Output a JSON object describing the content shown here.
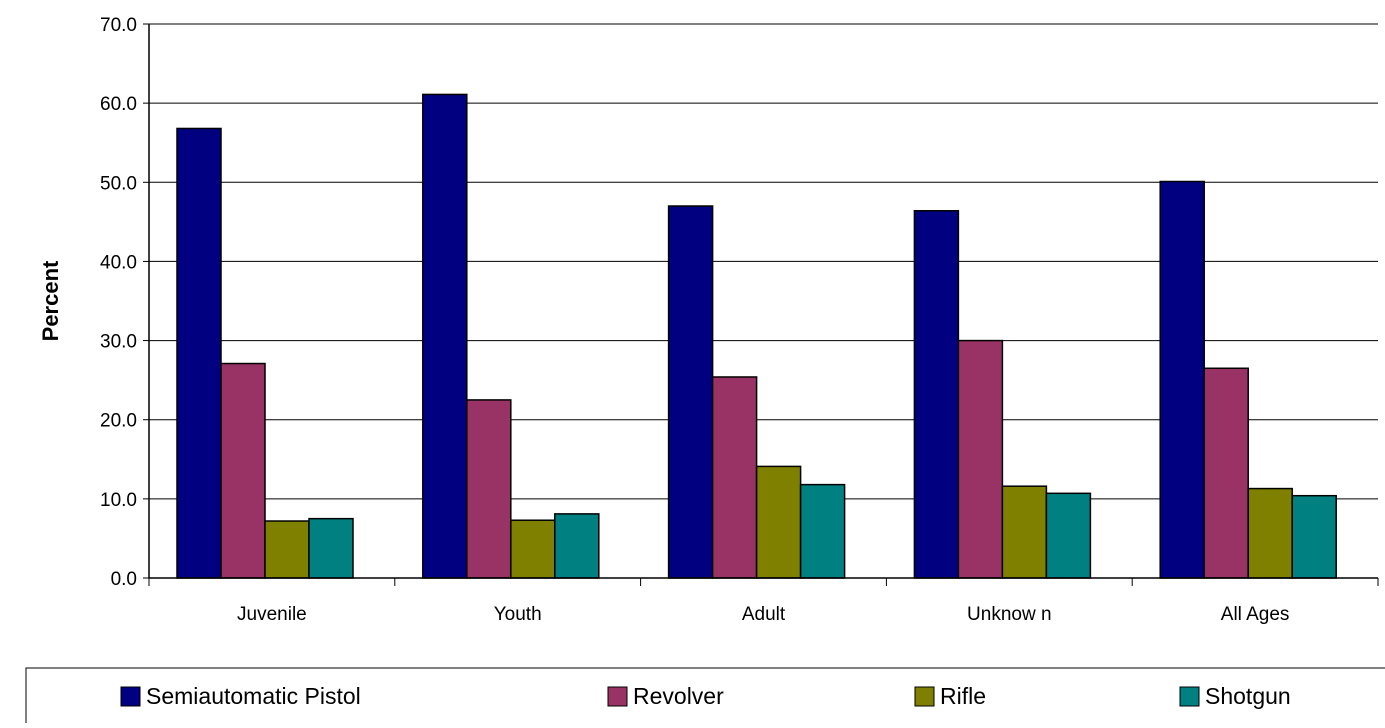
{
  "chart_data": {
    "type": "bar",
    "title": "",
    "xlabel": "",
    "ylabel": "Percent",
    "ylim": [
      0,
      70
    ],
    "yticks": [
      "0.0",
      "10.0",
      "20.0",
      "30.0",
      "40.0",
      "50.0",
      "60.0",
      "70.0"
    ],
    "categories": [
      "Juvenile",
      "Youth",
      "Adult",
      "Unknow n",
      "All Ages"
    ],
    "series": [
      {
        "name": "Semiautomatic Pistol",
        "color": "#000080",
        "values": [
          56.8,
          61.1,
          47.0,
          46.4,
          50.1
        ]
      },
      {
        "name": "Revolver",
        "color": "#993366",
        "values": [
          27.1,
          22.5,
          25.4,
          30.0,
          26.5
        ]
      },
      {
        "name": "Rifle",
        "color": "#808000",
        "values": [
          7.2,
          7.3,
          14.1,
          11.6,
          11.3
        ]
      },
      {
        "name": "Shotgun",
        "color": "#008080",
        "values": [
          7.5,
          8.1,
          11.8,
          10.7,
          10.4
        ]
      }
    ],
    "grid": true,
    "legend_position": "bottom"
  }
}
